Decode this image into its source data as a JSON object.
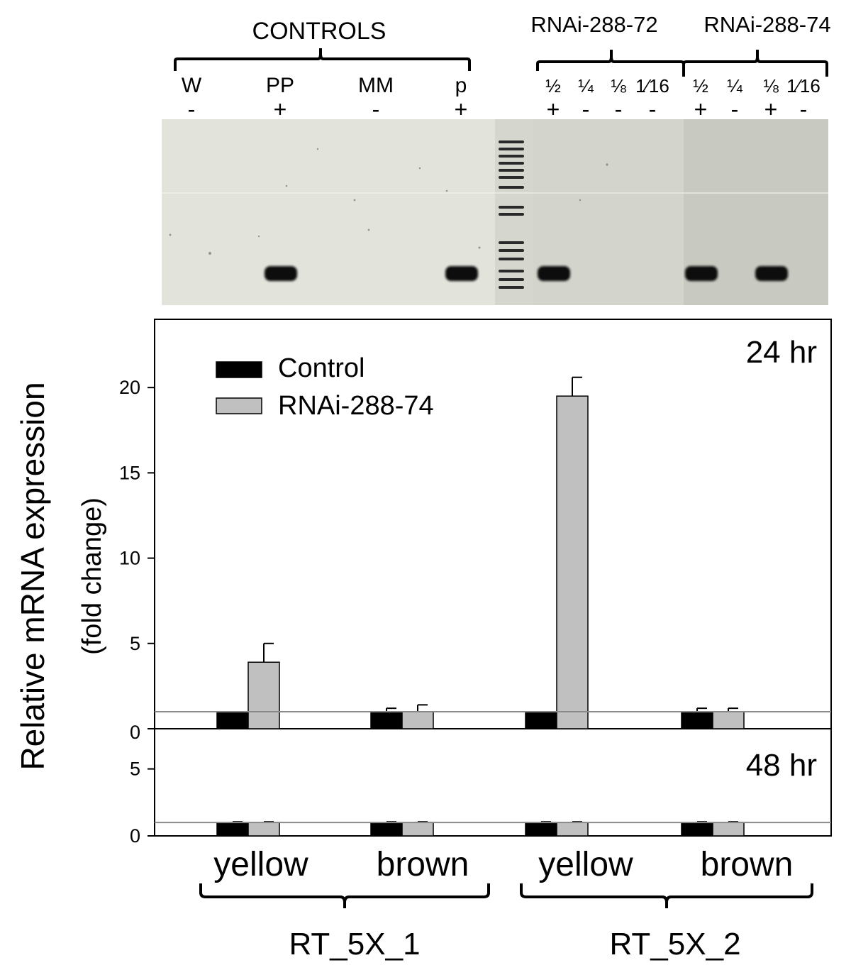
{
  "gel": {
    "controls_label": "CONTROLS",
    "group_72_label": "RNAi-288-72",
    "group_74_label": "RNAi-288-74",
    "control_lanes": [
      {
        "name": "W",
        "result": "-"
      },
      {
        "name": "PP",
        "result": "+"
      },
      {
        "name": "MM",
        "result": "-"
      },
      {
        "name": "p",
        "result": "+"
      }
    ],
    "group_72_lanes": [
      {
        "name": "½",
        "result": "+"
      },
      {
        "name": "¼",
        "result": "-"
      },
      {
        "name": "⅛",
        "result": "-"
      },
      {
        "name": "1⁄16",
        "result": "-"
      }
    ],
    "group_74_lanes": [
      {
        "name": "½",
        "result": "+"
      },
      {
        "name": "¼",
        "result": "-"
      },
      {
        "name": "⅛",
        "result": "+"
      },
      {
        "name": "1⁄16",
        "result": "-"
      }
    ],
    "colors": {
      "gel_light": "#e3e5de",
      "gel_dark": "#c9cbc2",
      "band": "#111111"
    }
  },
  "chart_data": [
    {
      "type": "bar",
      "panel_label": "24 hr",
      "ylabel": "Relative mRNA expression (fold change)",
      "ylabel_line1": "Relative mRNA expression",
      "ylabel_line2": "(fold change)",
      "ylim": [
        0,
        24
      ],
      "yticks": [
        0,
        5,
        10,
        15,
        20
      ],
      "reference_line": 1,
      "categories": [
        "yellow",
        "brown",
        "yellow",
        "brown"
      ],
      "groups": [
        {
          "label": "RT_5X_1",
          "categories": [
            "yellow",
            "brown"
          ]
        },
        {
          "label": "RT_5X_2",
          "categories": [
            "yellow",
            "brown"
          ]
        }
      ],
      "legend_position": "top-left",
      "series": [
        {
          "name": "Control",
          "color": "#000000",
          "values": [
            1,
            1,
            1,
            1
          ],
          "errors": [
            0,
            0.2,
            0,
            0.2
          ]
        },
        {
          "name": "RNAi-288-74",
          "color": "#c0c0c0",
          "values": [
            3.9,
            1,
            19.5,
            1
          ],
          "errors": [
            1.1,
            0.4,
            1.1,
            0.2
          ]
        }
      ]
    },
    {
      "type": "bar",
      "panel_label": "48 hr",
      "ylim": [
        0,
        8
      ],
      "yticks": [
        0,
        5
      ],
      "reference_line": 1,
      "categories": [
        "yellow",
        "brown",
        "yellow",
        "brown"
      ],
      "series": [
        {
          "name": "Control",
          "color": "#000000",
          "values": [
            1,
            1,
            1,
            1
          ],
          "errors": [
            0.05,
            0.05,
            0.05,
            0.05
          ]
        },
        {
          "name": "RNAi-288-74",
          "color": "#c0c0c0",
          "values": [
            1,
            1,
            1,
            1
          ],
          "errors": [
            0.05,
            0.05,
            0.05,
            0.05
          ]
        }
      ]
    }
  ]
}
